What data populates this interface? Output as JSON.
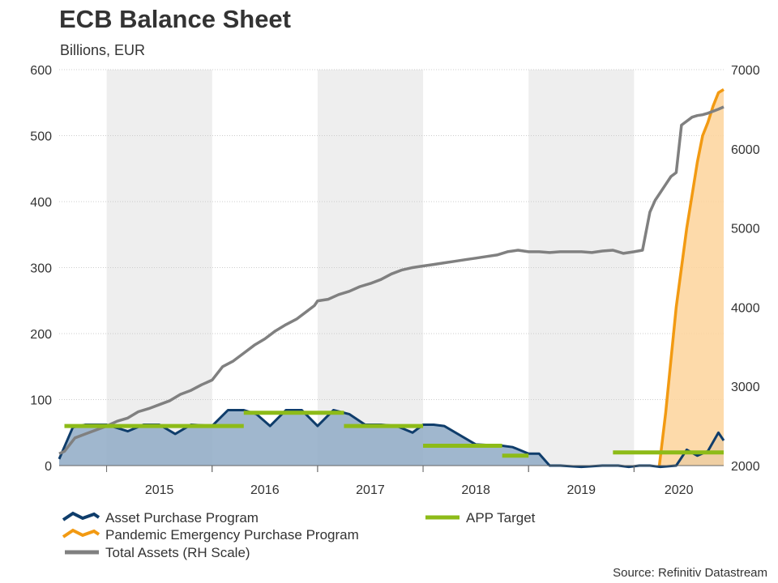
{
  "title": "ECB Balance Sheet",
  "subtitle": "Billions, EUR",
  "source": "Source: Refinitiv Datastream",
  "colors": {
    "app_line": "#0f3d6b",
    "app_fill": "#8faac6",
    "pepp_line": "#f29a12",
    "pepp_fill": "#fdd39b",
    "total_assets": "#808080",
    "app_target": "#8dbb18",
    "year_shade": "#eeeeee",
    "gridline": "#cccccc"
  },
  "chart_data": {
    "type": "line",
    "title": "ECB Balance Sheet",
    "subtitle": "Billions, EUR",
    "x_unit": "year",
    "xlim": [
      2014.55,
      2020.85
    ],
    "years": [
      "2015",
      "2016",
      "2017",
      "2018",
      "2019",
      "2020"
    ],
    "shaded_years": [
      2015,
      2017,
      2019
    ],
    "left_axis": {
      "label": "Billions, EUR",
      "ylim": [
        0,
        600
      ],
      "ticks": [
        "0",
        "100",
        "200",
        "300",
        "400",
        "500",
        "600"
      ]
    },
    "right_axis": {
      "label": "Total Assets (RH Scale)",
      "ylim": [
        2000,
        7000
      ],
      "ticks": [
        "2000",
        "3000",
        "4000",
        "5000",
        "6000",
        "7000"
      ]
    },
    "series": [
      {
        "key": "app",
        "name": "Asset Purchase Program",
        "axis": "left",
        "style": "area",
        "x": [
          2014.55,
          2014.68,
          2014.8,
          2015.0,
          2015.2,
          2015.35,
          2015.5,
          2015.65,
          2015.8,
          2016.0,
          2016.15,
          2016.3,
          2016.42,
          2016.55,
          2016.7,
          2016.85,
          2017.0,
          2017.15,
          2017.3,
          2017.45,
          2017.6,
          2017.75,
          2017.9,
          2018.0,
          2018.1,
          2018.2,
          2018.5,
          2018.75,
          2018.85,
          2019.0,
          2019.1,
          2019.2,
          2019.3,
          2019.5,
          2019.7,
          2019.85,
          2019.95,
          2020.05,
          2020.15,
          2020.25,
          2020.4,
          2020.5,
          2020.6,
          2020.7,
          2020.8,
          2020.85
        ],
        "values": [
          10,
          58,
          62,
          62,
          52,
          62,
          62,
          48,
          62,
          60,
          84,
          84,
          78,
          60,
          84,
          84,
          60,
          84,
          78,
          62,
          62,
          60,
          50,
          62,
          62,
          60,
          32,
          30,
          28,
          18,
          18,
          0,
          0,
          -2,
          0,
          0,
          -2,
          0,
          0,
          -2,
          0,
          24,
          15,
          22,
          50,
          38
        ]
      },
      {
        "key": "pepp",
        "name": "Pandemic Emergency Purchase Program",
        "axis": "left",
        "style": "area",
        "x": [
          2020.24,
          2020.3,
          2020.35,
          2020.4,
          2020.45,
          2020.5,
          2020.55,
          2020.6,
          2020.65,
          2020.7,
          2020.75,
          2020.8,
          2020.85
        ],
        "values": [
          0,
          80,
          160,
          240,
          300,
          360,
          410,
          460,
          500,
          520,
          545,
          565,
          570
        ]
      },
      {
        "key": "total_assets",
        "name": "Total Assets (RH Scale)",
        "axis": "right",
        "style": "line",
        "x": [
          2014.55,
          2014.6,
          2014.7,
          2014.8,
          2014.9,
          2015.0,
          2015.1,
          2015.2,
          2015.3,
          2015.4,
          2015.5,
          2015.6,
          2015.7,
          2015.8,
          2015.9,
          2016.0,
          2016.1,
          2016.2,
          2016.3,
          2016.4,
          2016.5,
          2016.6,
          2016.7,
          2016.8,
          2016.9,
          2016.97,
          2017.0,
          2017.1,
          2017.2,
          2017.3,
          2017.4,
          2017.5,
          2017.6,
          2017.7,
          2017.8,
          2017.9,
          2018.0,
          2018.1,
          2018.2,
          2018.3,
          2018.4,
          2018.5,
          2018.6,
          2018.7,
          2018.8,
          2018.9,
          2019.0,
          2019.1,
          2019.2,
          2019.3,
          2019.4,
          2019.5,
          2019.6,
          2019.7,
          2019.8,
          2019.9,
          2020.0,
          2020.08,
          2020.15,
          2020.2,
          2020.25,
          2020.3,
          2020.35,
          2020.4,
          2020.45,
          2020.5,
          2020.55,
          2020.6,
          2020.65,
          2020.7,
          2020.8,
          2020.85
        ],
        "values": [
          2150,
          2180,
          2350,
          2400,
          2450,
          2500,
          2560,
          2600,
          2680,
          2720,
          2770,
          2820,
          2900,
          2950,
          3020,
          3080,
          3250,
          3320,
          3420,
          3520,
          3600,
          3700,
          3780,
          3850,
          3950,
          4020,
          4080,
          4100,
          4160,
          4200,
          4260,
          4300,
          4350,
          4420,
          4470,
          4500,
          4520,
          4540,
          4560,
          4580,
          4600,
          4620,
          4640,
          4660,
          4700,
          4720,
          4700,
          4700,
          4690,
          4700,
          4700,
          4700,
          4690,
          4710,
          4720,
          4680,
          4700,
          4720,
          5200,
          5350,
          5450,
          5550,
          5650,
          5700,
          6300,
          6350,
          6400,
          6420,
          6430,
          6450,
          6500,
          6530
        ]
      },
      {
        "key": "app_target",
        "name": "APP Target",
        "axis": "left",
        "style": "step-segments",
        "segments": [
          {
            "x0": 2014.6,
            "x1": 2016.3,
            "value": 60
          },
          {
            "x0": 2016.3,
            "x1": 2017.25,
            "value": 80
          },
          {
            "x0": 2017.25,
            "x1": 2018.0,
            "value": 60
          },
          {
            "x0": 2018.0,
            "x1": 2018.75,
            "value": 30
          },
          {
            "x0": 2018.75,
            "x1": 2019.0,
            "value": 15
          },
          {
            "x0": 2019.8,
            "x1": 2020.85,
            "value": 20
          }
        ]
      }
    ],
    "legend": [
      {
        "key": "app",
        "label": "Asset Purchase Program"
      },
      {
        "key": "pepp",
        "label": "Pandemic Emergency Purchase Program"
      },
      {
        "key": "total_assets",
        "label": "Total Assets (RH Scale)"
      },
      {
        "key": "app_target",
        "label": "APP Target"
      }
    ],
    "legend_position": "bottom"
  }
}
